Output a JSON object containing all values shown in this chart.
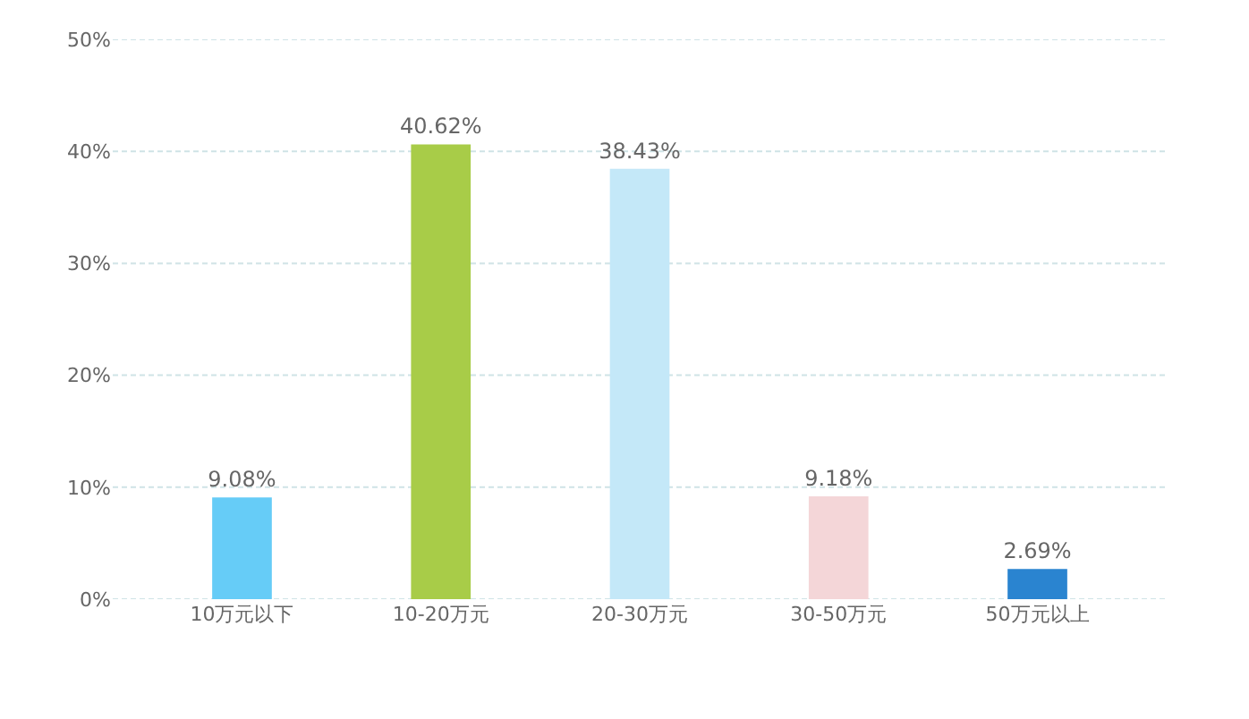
{
  "chart_data": {
    "type": "bar",
    "categories": [
      "10万元以下",
      "10-20万元",
      "20-30万元",
      "30-50万元",
      "50万元以上"
    ],
    "values": [
      9.08,
      40.62,
      38.43,
      9.18,
      2.69
    ],
    "colors": [
      "#66ccf7",
      "#a8cc48",
      "#c4e8f8",
      "#f4d6d8",
      "#2a84d0"
    ],
    "value_labels": [
      "9.08%",
      "40.62%",
      "38.43%",
      "9.18%",
      "2.69%"
    ],
    "ylim": [
      0,
      50
    ],
    "yticks": [
      {
        "value": 0,
        "label": "0%"
      },
      {
        "value": 10,
        "label": "10%"
      },
      {
        "value": 20,
        "label": "20%"
      },
      {
        "value": 30,
        "label": "30%"
      },
      {
        "value": 40,
        "label": "40%"
      },
      {
        "value": 50,
        "label": "50%"
      }
    ],
    "grid": "y"
  }
}
